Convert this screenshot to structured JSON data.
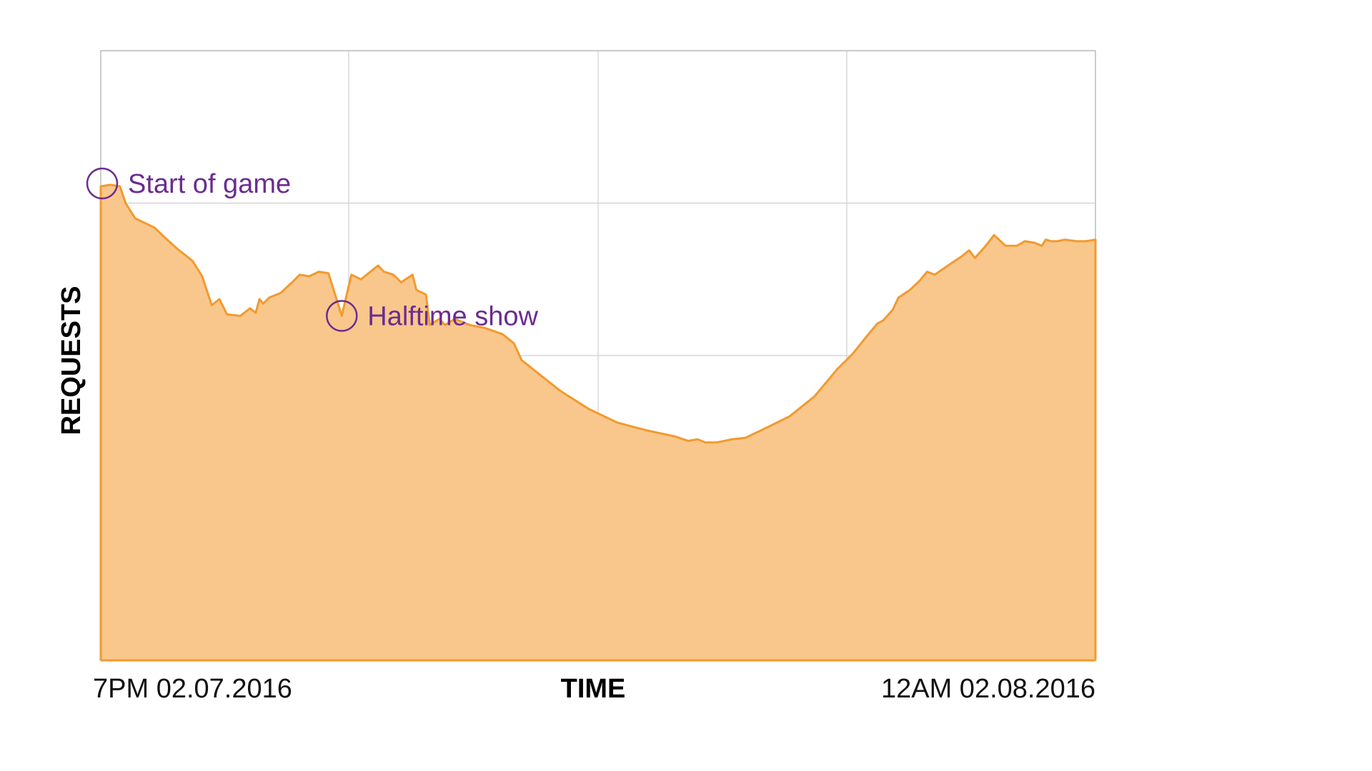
{
  "chart_data": {
    "type": "area",
    "xlabel": "TIME",
    "ylabel": "REQUESTS",
    "x_tick_labels": {
      "start": "7PM 02.07.2016",
      "end": "12AM 02.08.2016"
    },
    "xlim": [
      0,
      5
    ],
    "ylim": [
      0,
      4
    ],
    "grid": true,
    "x_units": "hours since 7PM 02.07.2016",
    "series": [
      {
        "values": [
          {
            "x": 0.0,
            "y": 3.11
          },
          {
            "x": 0.05,
            "y": 3.12
          },
          {
            "x": 0.1,
            "y": 3.11
          },
          {
            "x": 0.13,
            "y": 3.0
          },
          {
            "x": 0.18,
            "y": 2.9
          },
          {
            "x": 0.28,
            "y": 2.84
          },
          {
            "x": 0.33,
            "y": 2.78
          },
          {
            "x": 0.4,
            "y": 2.7
          },
          {
            "x": 0.48,
            "y": 2.62
          },
          {
            "x": 0.53,
            "y": 2.52
          },
          {
            "x": 0.58,
            "y": 2.33
          },
          {
            "x": 0.62,
            "y": 2.37
          },
          {
            "x": 0.66,
            "y": 2.27
          },
          {
            "x": 0.73,
            "y": 2.26
          },
          {
            "x": 0.78,
            "y": 2.31
          },
          {
            "x": 0.81,
            "y": 2.28
          },
          {
            "x": 0.83,
            "y": 2.37
          },
          {
            "x": 0.85,
            "y": 2.34
          },
          {
            "x": 0.88,
            "y": 2.38
          },
          {
            "x": 0.94,
            "y": 2.41
          },
          {
            "x": 1.0,
            "y": 2.48
          },
          {
            "x": 1.04,
            "y": 2.53
          },
          {
            "x": 1.09,
            "y": 2.52
          },
          {
            "x": 1.14,
            "y": 2.55
          },
          {
            "x": 1.19,
            "y": 2.54
          },
          {
            "x": 1.26,
            "y": 2.26
          },
          {
            "x": 1.31,
            "y": 2.53
          },
          {
            "x": 1.36,
            "y": 2.5
          },
          {
            "x": 1.42,
            "y": 2.56
          },
          {
            "x": 1.45,
            "y": 2.59
          },
          {
            "x": 1.48,
            "y": 2.55
          },
          {
            "x": 1.53,
            "y": 2.53
          },
          {
            "x": 1.57,
            "y": 2.48
          },
          {
            "x": 1.63,
            "y": 2.53
          },
          {
            "x": 1.65,
            "y": 2.43
          },
          {
            "x": 1.7,
            "y": 2.4
          },
          {
            "x": 1.72,
            "y": 2.2
          },
          {
            "x": 1.77,
            "y": 2.24
          },
          {
            "x": 1.8,
            "y": 2.2
          },
          {
            "x": 1.85,
            "y": 2.24
          },
          {
            "x": 1.93,
            "y": 2.2
          },
          {
            "x": 2.01,
            "y": 2.18
          },
          {
            "x": 2.1,
            "y": 2.14
          },
          {
            "x": 2.16,
            "y": 2.08
          },
          {
            "x": 2.2,
            "y": 1.97
          },
          {
            "x": 2.3,
            "y": 1.87
          },
          {
            "x": 2.4,
            "y": 1.77
          },
          {
            "x": 2.55,
            "y": 1.65
          },
          {
            "x": 2.7,
            "y": 1.56
          },
          {
            "x": 2.85,
            "y": 1.51
          },
          {
            "x": 3.0,
            "y": 1.47
          },
          {
            "x": 3.07,
            "y": 1.44
          },
          {
            "x": 3.12,
            "y": 1.45
          },
          {
            "x": 3.16,
            "y": 1.43
          },
          {
            "x": 3.22,
            "y": 1.43
          },
          {
            "x": 3.3,
            "y": 1.45
          },
          {
            "x": 3.37,
            "y": 1.46
          },
          {
            "x": 3.47,
            "y": 1.52
          },
          {
            "x": 3.6,
            "y": 1.6
          },
          {
            "x": 3.73,
            "y": 1.73
          },
          {
            "x": 3.85,
            "y": 1.91
          },
          {
            "x": 3.93,
            "y": 2.01
          },
          {
            "x": 4.0,
            "y": 2.12
          },
          {
            "x": 4.06,
            "y": 2.21
          },
          {
            "x": 4.09,
            "y": 2.23
          },
          {
            "x": 4.14,
            "y": 2.3
          },
          {
            "x": 4.17,
            "y": 2.38
          },
          {
            "x": 4.23,
            "y": 2.43
          },
          {
            "x": 4.28,
            "y": 2.49
          },
          {
            "x": 4.32,
            "y": 2.55
          },
          {
            "x": 4.36,
            "y": 2.53
          },
          {
            "x": 4.44,
            "y": 2.6
          },
          {
            "x": 4.5,
            "y": 2.65
          },
          {
            "x": 4.54,
            "y": 2.69
          },
          {
            "x": 4.57,
            "y": 2.64
          },
          {
            "x": 4.62,
            "y": 2.71
          },
          {
            "x": 4.67,
            "y": 2.79
          },
          {
            "x": 4.73,
            "y": 2.72
          },
          {
            "x": 4.79,
            "y": 2.72
          },
          {
            "x": 4.83,
            "y": 2.75
          },
          {
            "x": 4.88,
            "y": 2.74
          },
          {
            "x": 4.92,
            "y": 2.72
          },
          {
            "x": 4.94,
            "y": 2.76
          },
          {
            "x": 4.97,
            "y": 2.75
          },
          {
            "x": 5.0,
            "y": 2.75
          },
          {
            "x": 5.04,
            "y": 2.76
          },
          {
            "x": 5.1,
            "y": 2.75
          },
          {
            "x": 5.15,
            "y": 2.75
          },
          {
            "x": 5.2,
            "y": 2.76
          },
          {
            "x": 5.2,
            "y": 0.0
          }
        ]
      }
    ],
    "annotations": [
      {
        "label": "Start of game",
        "x": 0.0,
        "y": 3.11
      },
      {
        "label": "Halftime show",
        "x": 1.26,
        "y": 2.26
      }
    ]
  },
  "colors": {
    "area_fill": "#F9C78C",
    "area_line": "#F29A2E",
    "annotation": "#6B2C91",
    "grid": "#CFCFCF",
    "frame": "#BDBDBD"
  }
}
